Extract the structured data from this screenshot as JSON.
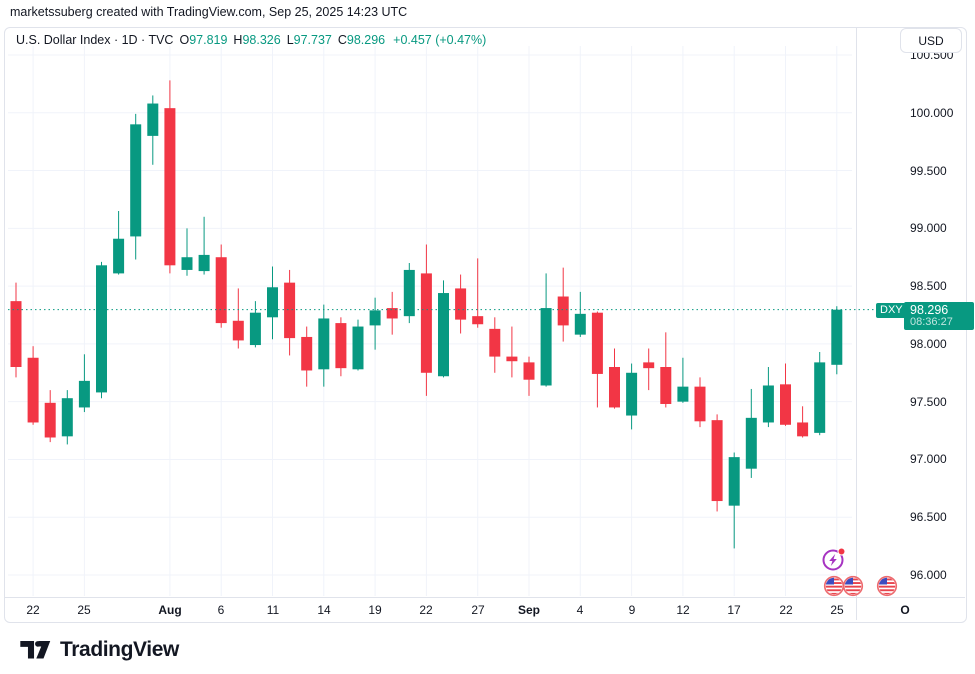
{
  "attribution": "marketssuberg created with TradingView.com, Sep 25, 2025 14:23 UTC",
  "legend": {
    "title": "U.S. Dollar Index · 1D · TVC",
    "ohlc": [
      {
        "label": "O",
        "value": "97.819"
      },
      {
        "label": "H",
        "value": "98.326"
      },
      {
        "label": "L",
        "value": "97.737"
      },
      {
        "label": "C",
        "value": "98.296"
      }
    ],
    "change": "+0.457 (+0.47%)"
  },
  "currency_button": "USD",
  "price_line": {
    "symbol": "DXY",
    "price": "98.296",
    "countdown": "08:36:27"
  },
  "price_scale": {
    "ticks": [
      {
        "label": "100.500",
        "price": 100.5
      },
      {
        "label": "100.000",
        "price": 100.0
      },
      {
        "label": "99.500",
        "price": 99.5
      },
      {
        "label": "99.000",
        "price": 99.0
      },
      {
        "label": "98.500",
        "price": 98.5
      },
      {
        "label": "98.000",
        "price": 98.0
      },
      {
        "label": "97.500",
        "price": 97.5
      },
      {
        "label": "97.000",
        "price": 97.0
      },
      {
        "label": "96.500",
        "price": 96.5
      },
      {
        "label": "96.000",
        "price": 96.0
      }
    ]
  },
  "time_scale": {
    "ticks": [
      {
        "label": "22",
        "index": 1,
        "bold": false
      },
      {
        "label": "25",
        "index": 4,
        "bold": false
      },
      {
        "label": "Aug",
        "index": 9,
        "bold": true
      },
      {
        "label": "6",
        "index": 12,
        "bold": false
      },
      {
        "label": "11",
        "index": 15,
        "bold": false
      },
      {
        "label": "14",
        "index": 18,
        "bold": false
      },
      {
        "label": "19",
        "index": 21,
        "bold": false
      },
      {
        "label": "22",
        "index": 24,
        "bold": false
      },
      {
        "label": "27",
        "index": 27,
        "bold": false
      },
      {
        "label": "Sep",
        "index": 30,
        "bold": true
      },
      {
        "label": "4",
        "index": 33,
        "bold": false
      },
      {
        "label": "9",
        "index": 36,
        "bold": false
      },
      {
        "label": "12",
        "index": 39,
        "bold": false
      },
      {
        "label": "17",
        "index": 42,
        "bold": false
      },
      {
        "label": "22",
        "index": 45,
        "bold": false
      },
      {
        "label": "25",
        "index": 48,
        "bold": false
      },
      {
        "label": "O",
        "index": 52,
        "bold": true
      }
    ]
  },
  "event_markers": [
    {
      "type": "key-event-icon",
      "x": 833,
      "y": 560,
      "badge": true
    },
    {
      "type": "us-flag-icon",
      "x": 834,
      "y": 586
    },
    {
      "type": "us-flag-icon",
      "x": 853,
      "y": 586
    },
    {
      "type": "us-flag-icon",
      "x": 887,
      "y": 586
    }
  ],
  "footer": {
    "brand": "TradingView"
  },
  "colors": {
    "up": "#089981",
    "down": "#F23645",
    "price_line": "#089981",
    "grid": "#F0F3FA",
    "axis_border": "#E0E3EB",
    "text": "#131722",
    "marker_purple": "#A633C1",
    "marker_badge_red": "#F23645",
    "flag_ring": "#ED6A6E",
    "flag_stripe": "#E8444E",
    "flag_canton": "#3C4CC0"
  },
  "chart_data": {
    "type": "candlestick",
    "title": "U.S. Dollar Index",
    "symbol": "DXY",
    "exchange": "TVC",
    "interval": "1D",
    "last_price": 98.296,
    "change": 0.457,
    "change_pct": 0.47,
    "ylim": [
      95.8,
      100.6
    ],
    "y_tick_step": 0.5,
    "grid": true,
    "dates": [
      "Jul 21",
      "Jul 22",
      "Jul 23",
      "Jul 24",
      "Jul 25",
      "Jul 28",
      "Jul 29",
      "Jul 30",
      "Jul 31",
      "Aug 1",
      "Aug 4",
      "Aug 5",
      "Aug 6",
      "Aug 7",
      "Aug 8",
      "Aug 11",
      "Aug 12",
      "Aug 13",
      "Aug 14",
      "Aug 15",
      "Aug 18",
      "Aug 19",
      "Aug 20",
      "Aug 21",
      "Aug 22",
      "Aug 25",
      "Aug 26",
      "Aug 27",
      "Aug 28",
      "Aug 29",
      "Sep 1",
      "Sep 2",
      "Sep 3",
      "Sep 4",
      "Sep 5",
      "Sep 8",
      "Sep 9",
      "Sep 10",
      "Sep 11",
      "Sep 12",
      "Sep 15",
      "Sep 16",
      "Sep 17",
      "Sep 18",
      "Sep 19",
      "Sep 22",
      "Sep 23",
      "Sep 24",
      "Sep 25"
    ],
    "open": [
      98.37,
      97.88,
      97.49,
      97.2,
      97.45,
      97.58,
      98.61,
      98.93,
      99.8,
      100.04,
      98.64,
      98.63,
      98.75,
      98.2,
      97.99,
      98.23,
      98.53,
      98.06,
      97.78,
      98.18,
      97.78,
      98.16,
      98.31,
      98.24,
      98.61,
      97.72,
      98.48,
      98.24,
      98.13,
      97.89,
      97.84,
      97.64,
      98.41,
      98.08,
      98.27,
      97.8,
      97.38,
      97.84,
      97.8,
      97.5,
      97.63,
      97.34,
      96.6,
      96.92,
      97.32,
      97.65,
      97.32,
      97.23,
      97.819
    ],
    "high": [
      98.53,
      97.98,
      97.6,
      97.6,
      97.91,
      98.71,
      99.15,
      99.99,
      100.15,
      100.28,
      99.0,
      99.1,
      98.86,
      98.48,
      98.37,
      98.67,
      98.64,
      98.15,
      98.34,
      98.23,
      98.21,
      98.4,
      98.45,
      98.7,
      98.86,
      98.55,
      98.6,
      98.74,
      98.23,
      98.15,
      97.89,
      98.61,
      98.66,
      98.45,
      98.28,
      97.96,
      97.83,
      97.96,
      98.1,
      97.88,
      97.71,
      97.39,
      97.06,
      97.61,
      97.8,
      97.83,
      97.46,
      97.93,
      98.326
    ],
    "low": [
      97.71,
      97.3,
      97.15,
      97.13,
      97.41,
      97.53,
      98.6,
      98.73,
      99.55,
      98.61,
      98.59,
      98.6,
      98.14,
      97.96,
      97.97,
      98.04,
      97.9,
      97.63,
      97.63,
      97.72,
      97.77,
      97.95,
      98.08,
      98.18,
      97.55,
      97.71,
      98.09,
      98.14,
      97.75,
      97.71,
      97.55,
      97.63,
      98.02,
      98.06,
      97.45,
      97.44,
      97.26,
      97.6,
      97.45,
      97.49,
      97.28,
      96.55,
      96.23,
      96.84,
      97.28,
      97.29,
      97.19,
      97.21,
      97.737
    ],
    "close": [
      97.8,
      97.32,
      97.19,
      97.53,
      97.68,
      98.68,
      98.91,
      99.9,
      100.08,
      98.68,
      98.75,
      98.77,
      98.18,
      98.03,
      98.27,
      98.49,
      98.05,
      97.77,
      98.22,
      97.79,
      98.15,
      98.29,
      98.22,
      98.64,
      97.75,
      98.44,
      98.21,
      98.17,
      97.89,
      97.85,
      97.69,
      98.31,
      98.16,
      98.26,
      97.74,
      97.45,
      97.75,
      97.79,
      97.48,
      97.63,
      97.33,
      96.64,
      97.02,
      97.36,
      97.64,
      97.3,
      97.2,
      97.84,
      98.296
    ]
  }
}
